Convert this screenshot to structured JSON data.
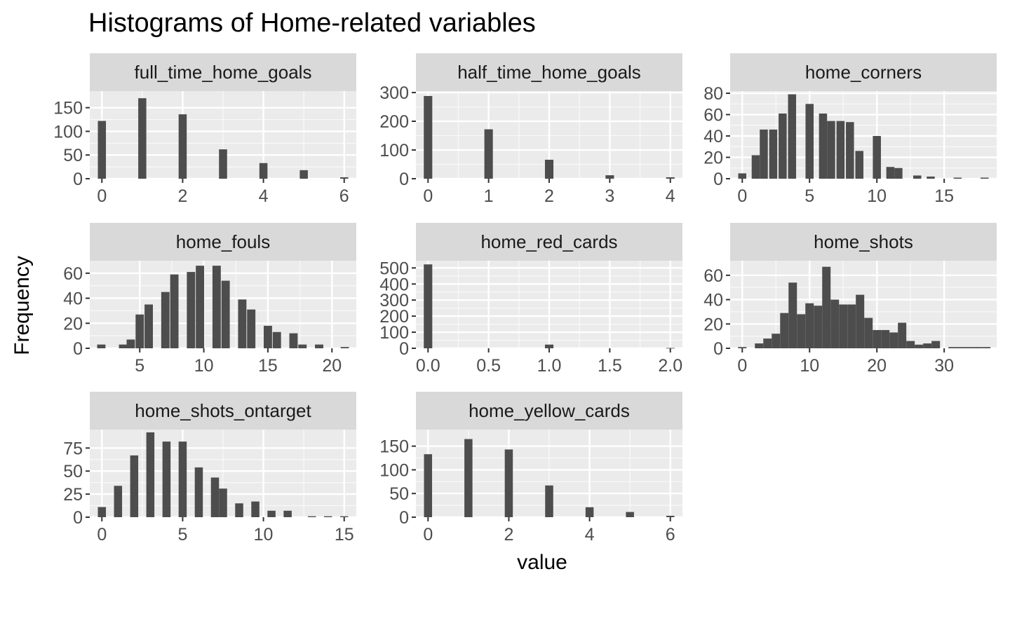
{
  "title": "Histograms of Home-related variables",
  "xlabel": "value",
  "ylabel": "Frequency",
  "colors": {
    "panel_bg": "#EBEBEB",
    "grid": "#FFFFFF",
    "strip_bg": "#D9D9D9",
    "bar": "#4D4D4D",
    "tick_text": "#4D4D4D"
  },
  "chart_data": [
    {
      "type": "bar",
      "facet": "full_time_home_goals",
      "xlim": [
        -0.3,
        6.3
      ],
      "ylim": [
        0,
        185
      ],
      "xticks": [
        0,
        2,
        4,
        6
      ],
      "xtick_labels": [
        "0",
        "2",
        "4",
        "6"
      ],
      "yticks": [
        0,
        50,
        100,
        150
      ],
      "ytick_labels": [
        "0",
        "50",
        "100",
        "150"
      ],
      "bar_width": 0.2,
      "bars": [
        {
          "x": 0,
          "y": 122
        },
        {
          "x": 1,
          "y": 170
        },
        {
          "x": 2,
          "y": 136
        },
        {
          "x": 3,
          "y": 62
        },
        {
          "x": 4,
          "y": 33
        },
        {
          "x": 5,
          "y": 18
        },
        {
          "x": 6,
          "y": 3
        }
      ]
    },
    {
      "type": "bar",
      "facet": "half_time_home_goals",
      "xlim": [
        -0.2,
        4.2
      ],
      "ylim": [
        0,
        305
      ],
      "xticks": [
        0,
        1,
        2,
        3,
        4
      ],
      "xtick_labels": [
        "0",
        "1",
        "2",
        "3",
        "4"
      ],
      "yticks": [
        0,
        100,
        200,
        300
      ],
      "ytick_labels": [
        "0",
        "100",
        "200",
        "300"
      ],
      "bar_width": 0.14,
      "bars": [
        {
          "x": 0,
          "y": 288
        },
        {
          "x": 1,
          "y": 172
        },
        {
          "x": 2,
          "y": 66
        },
        {
          "x": 3,
          "y": 12
        },
        {
          "x": 4,
          "y": 5
        }
      ]
    },
    {
      "type": "bar",
      "facet": "home_corners",
      "xlim": [
        -0.9,
        18.9
      ],
      "ylim": [
        0,
        82
      ],
      "xticks": [
        0,
        5,
        10,
        15
      ],
      "xtick_labels": [
        "0",
        "5",
        "10",
        "15"
      ],
      "yticks": [
        0,
        20,
        40,
        60,
        80
      ],
      "ytick_labels": [
        "0",
        "20",
        "40",
        "60",
        "80"
      ],
      "bar_width": 0.6,
      "bars": [
        {
          "x": 0,
          "y": 5
        },
        {
          "x": 1,
          "y": 22
        },
        {
          "x": 1.6,
          "y": 46
        },
        {
          "x": 2.3,
          "y": 46
        },
        {
          "x": 3,
          "y": 61
        },
        {
          "x": 3.7,
          "y": 79
        },
        {
          "x": 5,
          "y": 70
        },
        {
          "x": 6,
          "y": 61
        },
        {
          "x": 6.6,
          "y": 54
        },
        {
          "x": 7.3,
          "y": 54
        },
        {
          "x": 8,
          "y": 53
        },
        {
          "x": 8.7,
          "y": 26
        },
        {
          "x": 10,
          "y": 40
        },
        {
          "x": 11,
          "y": 11
        },
        {
          "x": 11.6,
          "y": 10
        },
        {
          "x": 13,
          "y": 3
        },
        {
          "x": 14,
          "y": 2
        },
        {
          "x": 16,
          "y": 1
        },
        {
          "x": 18,
          "y": 1
        }
      ]
    },
    {
      "type": "bar",
      "facet": "home_fouls",
      "xlim": [
        1.1,
        21.9
      ],
      "ylim": [
        0,
        70
      ],
      "xticks": [
        5,
        10,
        15,
        20
      ],
      "xtick_labels": [
        "5",
        "10",
        "15",
        "20"
      ],
      "yticks": [
        0,
        20,
        40,
        60
      ],
      "ytick_labels": [
        "0",
        "20",
        "40",
        "60"
      ],
      "bar_width": 0.65,
      "bars": [
        {
          "x": 2,
          "y": 3
        },
        {
          "x": 3.7,
          "y": 3
        },
        {
          "x": 4.3,
          "y": 7
        },
        {
          "x": 5,
          "y": 27
        },
        {
          "x": 5.7,
          "y": 35
        },
        {
          "x": 7,
          "y": 45
        },
        {
          "x": 7.7,
          "y": 59
        },
        {
          "x": 9,
          "y": 61
        },
        {
          "x": 9.7,
          "y": 66
        },
        {
          "x": 11,
          "y": 66
        },
        {
          "x": 11.7,
          "y": 54
        },
        {
          "x": 13,
          "y": 39
        },
        {
          "x": 13.7,
          "y": 31
        },
        {
          "x": 15,
          "y": 18
        },
        {
          "x": 15.7,
          "y": 13
        },
        {
          "x": 17,
          "y": 12
        },
        {
          "x": 17.7,
          "y": 3
        },
        {
          "x": 19,
          "y": 3
        },
        {
          "x": 21,
          "y": 1
        }
      ]
    },
    {
      "type": "bar",
      "facet": "home_red_cards",
      "xlim": [
        -0.1,
        2.1
      ],
      "ylim": [
        0,
        545
      ],
      "xticks": [
        0,
        0.5,
        1,
        1.5,
        2
      ],
      "xtick_labels": [
        "0.0",
        "0.5",
        "1.0",
        "1.5",
        "2.0"
      ],
      "yticks": [
        0,
        100,
        200,
        300,
        400,
        500
      ],
      "ytick_labels": [
        "0",
        "100",
        "200",
        "300",
        "400",
        "500"
      ],
      "bar_width": 0.07,
      "bars": [
        {
          "x": 0,
          "y": 522
        },
        {
          "x": 1,
          "y": 23
        },
        {
          "x": 2,
          "y": 2
        }
      ]
    },
    {
      "type": "bar",
      "facet": "home_shots",
      "xlim": [
        -1.8,
        37.8
      ],
      "ylim": [
        0,
        72
      ],
      "xticks": [
        0,
        10,
        20,
        30
      ],
      "xtick_labels": [
        "0",
        "10",
        "20",
        "30"
      ],
      "yticks": [
        0,
        20,
        40,
        60
      ],
      "ytick_labels": [
        "0",
        "20",
        "40",
        "60"
      ],
      "bar_width": 1.25,
      "bars": [
        {
          "x": 0,
          "y": 1
        },
        {
          "x": 2.5,
          "y": 4
        },
        {
          "x": 3.75,
          "y": 8
        },
        {
          "x": 5,
          "y": 12
        },
        {
          "x": 6.25,
          "y": 29
        },
        {
          "x": 7.5,
          "y": 54
        },
        {
          "x": 8.75,
          "y": 28
        },
        {
          "x": 10,
          "y": 37
        },
        {
          "x": 11.25,
          "y": 35
        },
        {
          "x": 12.5,
          "y": 67
        },
        {
          "x": 13.75,
          "y": 40
        },
        {
          "x": 15,
          "y": 36
        },
        {
          "x": 16.25,
          "y": 36
        },
        {
          "x": 17.5,
          "y": 44
        },
        {
          "x": 18.75,
          "y": 25
        },
        {
          "x": 20,
          "y": 15
        },
        {
          "x": 21.25,
          "y": 15
        },
        {
          "x": 22.5,
          "y": 13
        },
        {
          "x": 23.75,
          "y": 21
        },
        {
          "x": 25,
          "y": 6
        },
        {
          "x": 26.25,
          "y": 3
        },
        {
          "x": 27.5,
          "y": 4
        },
        {
          "x": 28.75,
          "y": 6
        },
        {
          "x": 31.25,
          "y": 1
        },
        {
          "x": 32.5,
          "y": 1
        },
        {
          "x": 33.75,
          "y": 1
        },
        {
          "x": 35,
          "y": 1
        },
        {
          "x": 36.25,
          "y": 1
        }
      ]
    },
    {
      "type": "bar",
      "facet": "home_shots_ontarget",
      "xlim": [
        -0.75,
        15.75
      ],
      "ylim": [
        0,
        95
      ],
      "xticks": [
        0,
        5,
        10,
        15
      ],
      "xtick_labels": [
        "0",
        "5",
        "10",
        "15"
      ],
      "yticks": [
        0,
        25,
        50,
        75
      ],
      "ytick_labels": [
        "0",
        "25",
        "50",
        "75"
      ],
      "bar_width": 0.5,
      "bars": [
        {
          "x": 0,
          "y": 11
        },
        {
          "x": 1,
          "y": 34
        },
        {
          "x": 2,
          "y": 67
        },
        {
          "x": 3,
          "y": 92
        },
        {
          "x": 4,
          "y": 82
        },
        {
          "x": 5,
          "y": 82
        },
        {
          "x": 6,
          "y": 54
        },
        {
          "x": 7,
          "y": 43
        },
        {
          "x": 7.5,
          "y": 31
        },
        {
          "x": 8.5,
          "y": 15
        },
        {
          "x": 9.5,
          "y": 17
        },
        {
          "x": 10.5,
          "y": 7
        },
        {
          "x": 11.5,
          "y": 7
        },
        {
          "x": 13,
          "y": 1
        },
        {
          "x": 14,
          "y": 1
        },
        {
          "x": 15,
          "y": 1
        }
      ]
    },
    {
      "type": "bar",
      "facet": "home_yellow_cards",
      "xlim": [
        -0.3,
        6.3
      ],
      "ylim": [
        0,
        185
      ],
      "xticks": [
        0,
        2,
        4,
        6
      ],
      "xtick_labels": [
        "0",
        "2",
        "4",
        "6"
      ],
      "yticks": [
        0,
        50,
        100,
        150
      ],
      "ytick_labels": [
        "0",
        "50",
        "100",
        "150"
      ],
      "bar_width": 0.2,
      "bars": [
        {
          "x": 0,
          "y": 133
        },
        {
          "x": 1,
          "y": 165
        },
        {
          "x": 2,
          "y": 143
        },
        {
          "x": 3,
          "y": 67
        },
        {
          "x": 4,
          "y": 21
        },
        {
          "x": 5,
          "y": 11
        },
        {
          "x": 6,
          "y": 3
        }
      ]
    }
  ]
}
